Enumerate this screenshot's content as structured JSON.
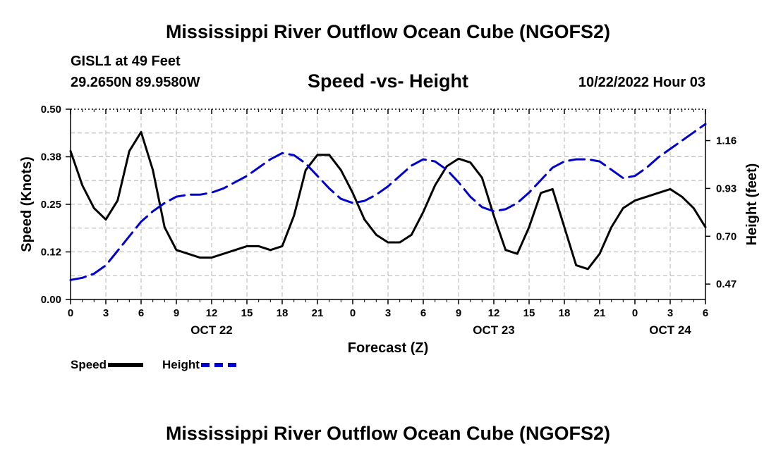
{
  "header": {
    "title": "Mississippi River Outflow Ocean Cube (NGOFS2)",
    "station": "GISL1 at 49 Feet",
    "coordinates": "29.2650N  89.9580W",
    "subtitle": "Speed -vs- Height",
    "datetime": "10/22/2022 Hour 03"
  },
  "footer": {
    "title": "Mississippi River Outflow Ocean Cube (NGOFS2)"
  },
  "chart_data": {
    "type": "line",
    "xlabel": "Forecast (Z)",
    "ylabel": "Speed (Knots)",
    "y2label": "Height (feet)",
    "xlim": [
      0,
      54
    ],
    "ylim": [
      0,
      0.5
    ],
    "y2lim": [
      0.396,
      1.311
    ],
    "x_ticks": [
      0,
      3,
      6,
      9,
      12,
      15,
      18,
      21,
      24,
      27,
      30,
      33,
      36,
      39,
      42,
      45,
      48,
      51,
      54
    ],
    "x_tick_labels": [
      "0",
      "3",
      "6",
      "9",
      "12",
      "15",
      "18",
      "21",
      "0",
      "3",
      "6",
      "9",
      "12",
      "15",
      "18",
      "21",
      "0",
      "3",
      "6"
    ],
    "date_labels": [
      {
        "x": 12,
        "label": "OCT 22"
      },
      {
        "x": 36,
        "label": "OCT 23"
      },
      {
        "x": 51,
        "label": "OCT 24"
      }
    ],
    "y_ticks": [
      0,
      0.12,
      0.25,
      0.38,
      0.5
    ],
    "y_tick_labels": [
      "0.00",
      "0.12",
      "0.25",
      "0.38",
      "0.50"
    ],
    "y2_ticks": [
      0.47,
      0.7,
      0.93,
      1.16
    ],
    "y2_tick_labels": [
      "0.47",
      "0.70",
      "0.93",
      "1.16"
    ],
    "series": [
      {
        "name": "Speed",
        "axis": "left",
        "color": "#000000",
        "dash": "solid",
        "x": [
          0,
          1,
          2,
          3,
          4,
          5,
          6,
          7,
          8,
          9,
          10,
          11,
          12,
          13,
          14,
          15,
          16,
          17,
          18,
          19,
          20,
          21,
          22,
          23,
          24,
          25,
          26,
          27,
          28,
          29,
          30,
          31,
          32,
          33,
          34,
          35,
          36,
          37,
          38,
          39,
          40,
          41,
          42,
          43,
          44,
          45,
          46,
          47,
          48,
          49,
          50,
          51,
          52,
          53,
          54
        ],
        "values": [
          0.39,
          0.3,
          0.24,
          0.21,
          0.26,
          0.39,
          0.44,
          0.34,
          0.19,
          0.13,
          0.12,
          0.11,
          0.11,
          0.12,
          0.13,
          0.14,
          0.14,
          0.13,
          0.14,
          0.22,
          0.34,
          0.38,
          0.38,
          0.34,
          0.28,
          0.21,
          0.17,
          0.15,
          0.15,
          0.17,
          0.23,
          0.3,
          0.35,
          0.37,
          0.36,
          0.32,
          0.22,
          0.13,
          0.12,
          0.19,
          0.28,
          0.29,
          0.19,
          0.09,
          0.08,
          0.12,
          0.19,
          0.24,
          0.26,
          0.27,
          0.28,
          0.29,
          0.27,
          0.24,
          0.19
        ]
      },
      {
        "name": "Height",
        "axis": "right",
        "color": "#0000cc",
        "dash": "dashed",
        "x": [
          0,
          1,
          2,
          3,
          4,
          5,
          6,
          7,
          8,
          9,
          10,
          11,
          12,
          13,
          14,
          15,
          16,
          17,
          18,
          19,
          20,
          21,
          22,
          23,
          24,
          25,
          26,
          27,
          28,
          29,
          30,
          31,
          32,
          33,
          34,
          35,
          36,
          37,
          38,
          39,
          40,
          41,
          42,
          43,
          44,
          45,
          46,
          47,
          48,
          49,
          50,
          51,
          52,
          53,
          54
        ],
        "values": [
          0.49,
          0.5,
          0.52,
          0.56,
          0.63,
          0.7,
          0.77,
          0.82,
          0.86,
          0.89,
          0.9,
          0.9,
          0.91,
          0.93,
          0.96,
          0.99,
          1.03,
          1.07,
          1.1,
          1.09,
          1.05,
          0.99,
          0.93,
          0.88,
          0.86,
          0.87,
          0.9,
          0.94,
          0.99,
          1.04,
          1.07,
          1.06,
          1.02,
          0.96,
          0.89,
          0.84,
          0.82,
          0.83,
          0.86,
          0.91,
          0.97,
          1.03,
          1.06,
          1.07,
          1.07,
          1.06,
          1.02,
          0.98,
          0.99,
          1.03,
          1.08,
          1.12,
          1.16,
          1.2,
          1.24
        ]
      }
    ],
    "legend": [
      {
        "label": "Speed",
        "color": "#000000",
        "dash": "solid"
      },
      {
        "label": "Height",
        "color": "#0000cc",
        "dash": "dashed"
      }
    ]
  }
}
